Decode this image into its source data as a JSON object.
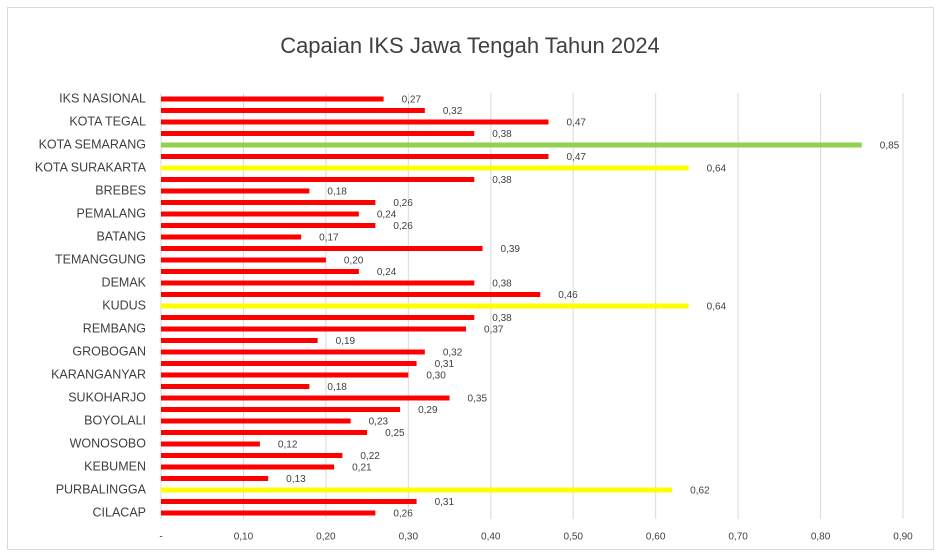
{
  "chart_data": {
    "type": "barh",
    "title": "Capaian IKS Jawa Tengah Tahun 2024",
    "categories": [
      "IKS NASIONAL",
      null,
      "KOTA TEGAL",
      null,
      "KOTA SEMARANG",
      null,
      "KOTA SURAKARTA",
      null,
      "BREBES",
      null,
      "PEMALANG",
      null,
      "BATANG",
      null,
      "TEMANGGUNG",
      null,
      "DEMAK",
      null,
      "KUDUS",
      null,
      "REMBANG",
      null,
      "GROBOGAN",
      null,
      "KARANGANYAR",
      null,
      "SUKOHARJO",
      null,
      "BOYOLALI",
      null,
      "WONOSOBO",
      null,
      "KEBUMEN",
      null,
      "PURBALINGGA",
      null,
      "CILACAP"
    ],
    "values": [
      0.27,
      0.32,
      0.47,
      0.38,
      0.85,
      0.47,
      0.64,
      0.38,
      0.18,
      0.26,
      0.24,
      0.26,
      0.17,
      0.39,
      0.2,
      0.24,
      0.38,
      0.46,
      0.64,
      0.38,
      0.37,
      0.19,
      0.32,
      0.31,
      0.3,
      0.18,
      0.35,
      0.29,
      0.23,
      0.25,
      0.12,
      0.22,
      0.21,
      0.13,
      0.62,
      0.31,
      0.26
    ],
    "value_labels": [
      "0,27",
      "0,32",
      "0,47",
      "0,38",
      "0,85",
      "0,47",
      "0,64",
      "0,38",
      "0,18",
      "0,26",
      "0,24",
      "0,26",
      "0,17",
      "0,39",
      "0,20",
      "0,24",
      "0,38",
      "0,46",
      "0,64",
      "0,38",
      "0,37",
      "0,19",
      "0,32",
      "0,31",
      "0,30",
      "0,18",
      "0,35",
      "0,29",
      "0,23",
      "0,25",
      "0,12",
      "0,22",
      "0,21",
      "0,13",
      "0,62",
      "0,31",
      "0,26"
    ],
    "colors": [
      "#ff0000",
      "#ff0000",
      "#ff0000",
      "#ff0000",
      "#92d050",
      "#ff0000",
      "#ffff00",
      "#ff0000",
      "#ff0000",
      "#ff0000",
      "#ff0000",
      "#ff0000",
      "#ff0000",
      "#ff0000",
      "#ff0000",
      "#ff0000",
      "#ff0000",
      "#ff0000",
      "#ffff00",
      "#ff0000",
      "#ff0000",
      "#ff0000",
      "#ff0000",
      "#ff0000",
      "#ff0000",
      "#ff0000",
      "#ff0000",
      "#ff0000",
      "#ff0000",
      "#ff0000",
      "#ff0000",
      "#ff0000",
      "#ff0000",
      "#ff0000",
      "#ffff00",
      "#ff0000",
      "#ff0000"
    ],
    "xlim": [
      0,
      0.9
    ],
    "xticks": [
      {
        "value": 0,
        "label": "-"
      },
      {
        "value": 0.1,
        "label": "0,10"
      },
      {
        "value": 0.2,
        "label": "0,20"
      },
      {
        "value": 0.3,
        "label": "0,30"
      },
      {
        "value": 0.4,
        "label": "0,40"
      },
      {
        "value": 0.5,
        "label": "0,50"
      },
      {
        "value": 0.6,
        "label": "0,60"
      },
      {
        "value": 0.7,
        "label": "0,70"
      },
      {
        "value": 0.8,
        "label": "0,80"
      },
      {
        "value": 0.9,
        "label": "0,90"
      }
    ],
    "grid": true
  }
}
